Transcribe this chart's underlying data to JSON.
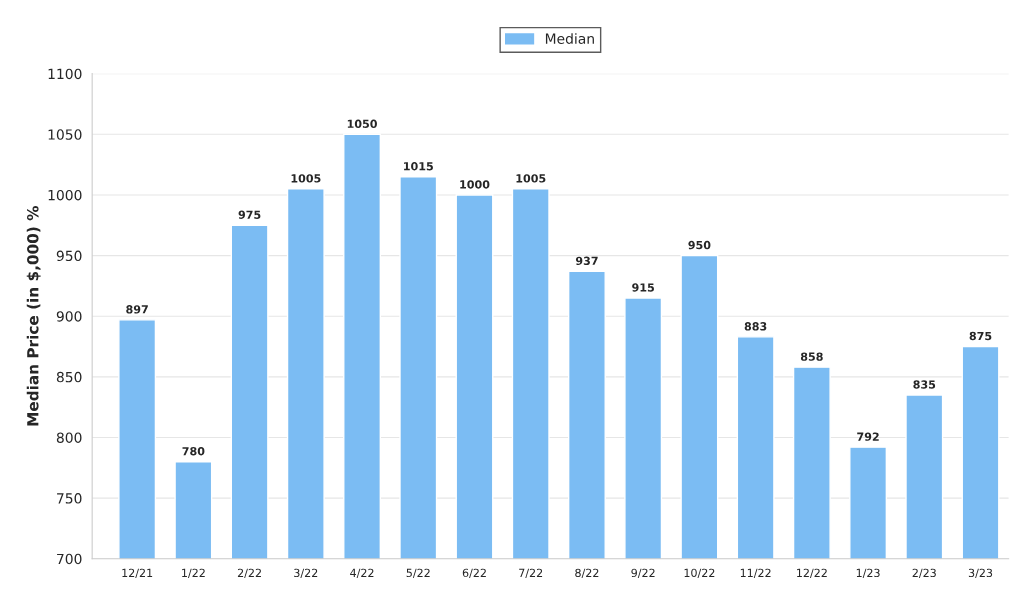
{
  "chart_data": {
    "type": "bar",
    "ylabel": "Median Price (in $,000) %",
    "categories": [
      "12/21",
      "1/22",
      "2/22",
      "3/22",
      "4/22",
      "5/22",
      "6/22",
      "7/22",
      "8/22",
      "9/22",
      "10/22",
      "11/22",
      "12/22",
      "1/23",
      "2/23",
      "3/23"
    ],
    "series": [
      {
        "name": "Median",
        "color": "#7bbcf3",
        "values": [
          897,
          780,
          975,
          1005,
          1050,
          1015,
          1000,
          1005,
          937,
          915,
          950,
          883,
          858,
          792,
          835,
          875
        ]
      }
    ],
    "ylim": [
      700,
      1100
    ],
    "yticks": [
      700,
      750,
      800,
      850,
      900,
      950,
      1000,
      1050,
      1100
    ],
    "grid": "y",
    "legend": "top",
    "data_labels": true
  }
}
